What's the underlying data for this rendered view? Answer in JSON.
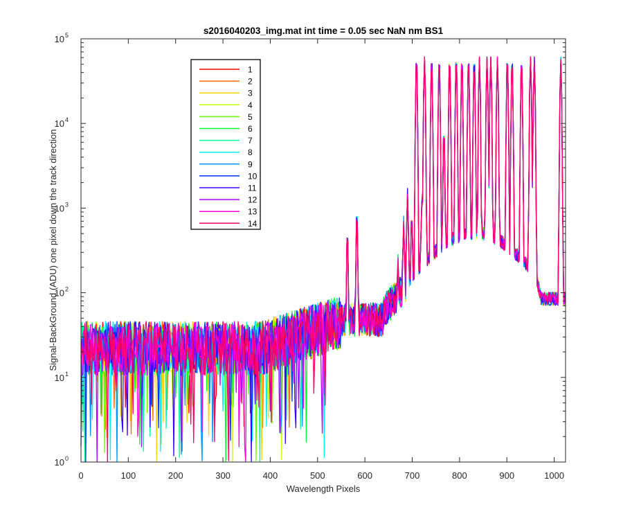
{
  "chart_data": {
    "type": "line",
    "title": "s2016040203_img.mat int time = 0.05 sec  NaN nm BS1",
    "xlabel": "Wavelength Pixels",
    "ylabel": "Signal-BackGround (ADU) one pixel down the track direction",
    "xlim": [
      0,
      1024
    ],
    "ylim": [
      1,
      100000
    ],
    "yscale": "log",
    "xticks": [
      0,
      100,
      200,
      300,
      400,
      500,
      600,
      700,
      800,
      900,
      1000
    ],
    "xtick_labels": [
      "0",
      "100",
      "200",
      "300",
      "400",
      "500",
      "600",
      "700",
      "800",
      "900",
      "1000"
    ],
    "yticks": [
      1,
      10,
      100,
      1000,
      10000,
      100000
    ],
    "ytick_bases": [
      "10",
      "10",
      "10",
      "10",
      "10",
      "10"
    ],
    "ytick_exponents": [
      "0",
      "1",
      "2",
      "3",
      "4",
      "5"
    ],
    "legend_position": "top-left",
    "series": [
      {
        "name": "1",
        "color": "#ff0000"
      },
      {
        "name": "2",
        "color": "#ff6a00"
      },
      {
        "name": "3",
        "color": "#ffd400"
      },
      {
        "name": "4",
        "color": "#c8ff00"
      },
      {
        "name": "5",
        "color": "#6aff00"
      },
      {
        "name": "6",
        "color": "#00ff2a"
      },
      {
        "name": "7",
        "color": "#00ff9c"
      },
      {
        "name": "8",
        "color": "#00f0ff"
      },
      {
        "name": "9",
        "color": "#0096ff"
      },
      {
        "name": "10",
        "color": "#0032ff"
      },
      {
        "name": "11",
        "color": "#3c00ff"
      },
      {
        "name": "12",
        "color": "#b000ff"
      },
      {
        "name": "13",
        "color": "#ff00dc"
      },
      {
        "name": "14",
        "color": "#ff0064"
      }
    ],
    "emission_peaks": [
      {
        "x": 563,
        "y": 500
      },
      {
        "x": 583,
        "y": 900
      },
      {
        "x": 670,
        "y": 250
      },
      {
        "x": 682,
        "y": 700
      },
      {
        "x": 690,
        "y": 1500
      },
      {
        "x": 699,
        "y": 800
      },
      {
        "x": 709,
        "y": 58000
      },
      {
        "x": 720,
        "y": 1100
      },
      {
        "x": 726,
        "y": 57000
      },
      {
        "x": 741,
        "y": 58000
      },
      {
        "x": 757,
        "y": 56000
      },
      {
        "x": 767,
        "y": 8000
      },
      {
        "x": 779,
        "y": 57000
      },
      {
        "x": 793,
        "y": 59000
      },
      {
        "x": 805,
        "y": 57000
      },
      {
        "x": 819,
        "y": 58000
      },
      {
        "x": 831,
        "y": 57000
      },
      {
        "x": 842,
        "y": 58000
      },
      {
        "x": 858,
        "y": 60000
      },
      {
        "x": 866,
        "y": 60000
      },
      {
        "x": 880,
        "y": 60000
      },
      {
        "x": 901,
        "y": 59000
      },
      {
        "x": 911,
        "y": 57000
      },
      {
        "x": 931,
        "y": 56000
      },
      {
        "x": 950,
        "y": 60000
      },
      {
        "x": 958,
        "y": 58000
      },
      {
        "x": 1014,
        "y": 55000
      }
    ]
  }
}
